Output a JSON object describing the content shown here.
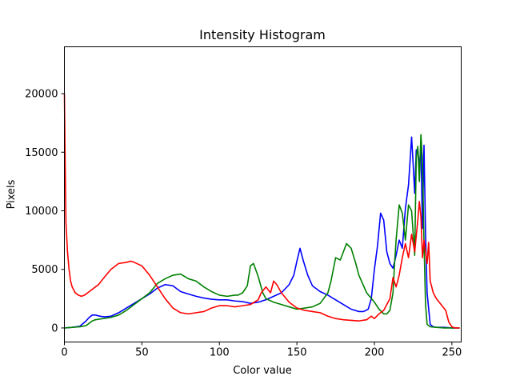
{
  "chart_data": {
    "type": "line",
    "title": "Intensity Histogram",
    "xlabel": "Color value",
    "ylabel": "Pixels",
    "xlim": [
      0,
      256
    ],
    "ylim": [
      -1200,
      24000
    ],
    "xticks": [
      0,
      50,
      100,
      150,
      200,
      250
    ],
    "yticks": [
      0,
      5000,
      10000,
      15000,
      20000
    ],
    "grid": false,
    "legend": "none",
    "series": [
      {
        "color": "#0000ff",
        "x": [
          0,
          5,
          10,
          14,
          16,
          18,
          20,
          23,
          26,
          30,
          35,
          40,
          45,
          50,
          55,
          60,
          65,
          70,
          75,
          80,
          85,
          90,
          95,
          100,
          105,
          110,
          115,
          120,
          125,
          130,
          135,
          140,
          145,
          148,
          150,
          152,
          154,
          157,
          160,
          165,
          170,
          175,
          180,
          185,
          190,
          193,
          196,
          198,
          200,
          202,
          204,
          206,
          208,
          210,
          212,
          214,
          216,
          218,
          220,
          222,
          224,
          225,
          226,
          227,
          228,
          229,
          230,
          231,
          232,
          233,
          234,
          236,
          238,
          240,
          245,
          250,
          255
        ],
        "values": [
          0,
          50,
          150,
          600,
          900,
          1100,
          1100,
          1000,
          950,
          1000,
          1300,
          1700,
          2100,
          2500,
          2900,
          3400,
          3700,
          3600,
          3100,
          2900,
          2700,
          2550,
          2450,
          2400,
          2400,
          2300,
          2250,
          2100,
          2200,
          2400,
          2700,
          3000,
          3700,
          4500,
          5700,
          6800,
          5800,
          4500,
          3600,
          3100,
          2800,
          2400,
          2000,
          1600,
          1400,
          1400,
          1600,
          2500,
          5000,
          7000,
          9800,
          9200,
          6500,
          5500,
          5100,
          6200,
          7500,
          6800,
          10200,
          12200,
          16300,
          14000,
          11500,
          15200,
          15200,
          13800,
          15300,
          8500,
          15600,
          8000,
          3000,
          300,
          100,
          50,
          50,
          0,
          0
        ]
      },
      {
        "color": "#008000",
        "x": [
          0,
          5,
          10,
          14,
          16,
          18,
          20,
          25,
          30,
          35,
          40,
          45,
          50,
          55,
          60,
          65,
          70,
          75,
          80,
          85,
          90,
          95,
          100,
          105,
          110,
          112,
          115,
          118,
          120,
          122,
          125,
          128,
          130,
          135,
          140,
          145,
          150,
          155,
          160,
          165,
          170,
          172,
          175,
          178,
          180,
          182,
          185,
          188,
          190,
          195,
          200,
          203,
          206,
          208,
          210,
          212,
          213,
          214,
          216,
          218,
          220,
          222,
          224,
          226,
          227,
          228,
          229,
          230,
          231,
          232,
          233,
          234,
          236,
          240,
          245,
          250,
          255
        ],
        "values": [
          0,
          50,
          100,
          200,
          400,
          600,
          700,
          800,
          900,
          1100,
          1500,
          2000,
          2500,
          3000,
          3800,
          4200,
          4500,
          4600,
          4200,
          4000,
          3500,
          3100,
          2800,
          2700,
          2800,
          2800,
          3000,
          3600,
          5300,
          5500,
          4400,
          3000,
          2500,
          2200,
          2000,
          1800,
          1600,
          1700,
          1800,
          2100,
          3000,
          4000,
          6000,
          5800,
          6500,
          7200,
          6800,
          5500,
          4500,
          3000,
          2200,
          1600,
          1200,
          1200,
          1500,
          3000,
          5500,
          7500,
          10500,
          9800,
          7500,
          10500,
          10000,
          6200,
          14500,
          15500,
          12500,
          16500,
          14300,
          7300,
          2000,
          300,
          100,
          50,
          0,
          0,
          0
        ]
      },
      {
        "color": "#ff0000",
        "x": [
          0,
          0.5,
          1,
          2,
          3,
          4,
          5,
          7,
          9,
          11,
          13,
          15,
          18,
          20,
          22,
          25,
          30,
          35,
          40,
          43,
          45,
          50,
          55,
          60,
          65,
          70,
          75,
          80,
          85,
          90,
          95,
          100,
          105,
          110,
          115,
          120,
          125,
          127,
          130,
          133,
          135,
          137,
          140,
          145,
          150,
          155,
          160,
          165,
          170,
          175,
          180,
          185,
          190,
          195,
          198,
          200,
          203,
          206,
          208,
          210,
          212,
          214,
          216,
          218,
          220,
          222,
          224,
          226,
          228,
          229,
          230,
          231,
          232,
          234,
          235,
          236,
          238,
          240,
          243,
          246,
          248,
          250,
          252,
          255
        ],
        "values": [
          20000,
          14000,
          9000,
          6500,
          5000,
          4000,
          3500,
          3000,
          2800,
          2700,
          2800,
          3000,
          3300,
          3500,
          3700,
          4200,
          5000,
          5500,
          5600,
          5700,
          5600,
          5300,
          4500,
          3500,
          2500,
          1700,
          1300,
          1200,
          1300,
          1400,
          1700,
          1900,
          1900,
          1800,
          1900,
          2000,
          2400,
          3000,
          3500,
          3000,
          4000,
          3700,
          3000,
          2200,
          1700,
          1500,
          1400,
          1300,
          1000,
          800,
          700,
          650,
          600,
          700,
          1000,
          800,
          1200,
          1500,
          2000,
          2500,
          4300,
          3500,
          4500,
          6000,
          7200,
          6000,
          8000,
          6500,
          9200,
          10800,
          9500,
          6000,
          7500,
          5500,
          7300,
          4000,
          3000,
          2500,
          2000,
          1500,
          500,
          100,
          0,
          0
        ]
      }
    ]
  }
}
